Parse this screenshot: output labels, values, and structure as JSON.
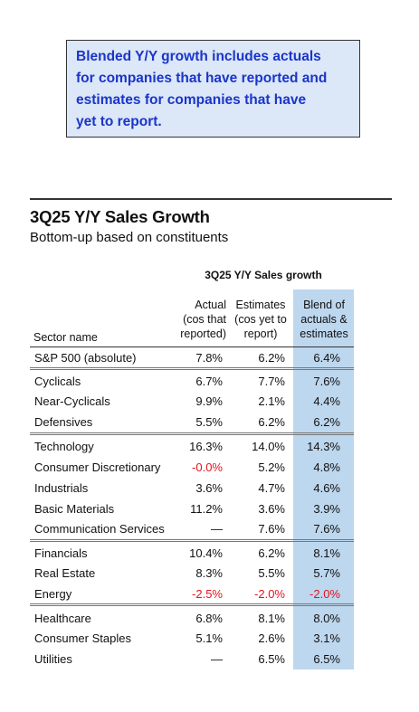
{
  "callout": {
    "lines": [
      "Blended Y/Y growth includes actuals",
      "for companies that have reported and",
      "estimates for companies that have",
      "yet to report."
    ]
  },
  "chart_data": {
    "type": "table",
    "title": "3Q25 Y/Y Sales Growth",
    "subtitle": "Bottom-up based on constituents",
    "group_header": "3Q25 Y/Y Sales growth",
    "columns": {
      "sector": "Sector name",
      "actual": [
        "Actual",
        "(cos that",
        "reported)"
      ],
      "estimates": [
        "Estimates",
        "(cos yet to",
        "report)"
      ],
      "blend": [
        "Blend of",
        "actuals &",
        "estimates"
      ]
    },
    "highlight_color": "#bdd7ee",
    "negative_color": "#e0141e",
    "rows": [
      {
        "sector": "S&P 500 (absolute)",
        "actual": "7.8%",
        "estimates": "6.2%",
        "blend": "6.4%"
      },
      {
        "sector": "Cyclicals",
        "actual": "6.7%",
        "estimates": "7.7%",
        "blend": "7.6%"
      },
      {
        "sector": "Near-Cyclicals",
        "actual": "9.9%",
        "estimates": "2.1%",
        "blend": "4.4%"
      },
      {
        "sector": "Defensives",
        "actual": "5.5%",
        "estimates": "6.2%",
        "blend": "6.2%"
      },
      {
        "sector": "Technology",
        "actual": "16.3%",
        "estimates": "14.0%",
        "blend": "14.3%"
      },
      {
        "sector": "Consumer Discretionary",
        "actual": "-0.0%",
        "estimates": "5.2%",
        "blend": "4.8%"
      },
      {
        "sector": "Industrials",
        "actual": "3.6%",
        "estimates": "4.7%",
        "blend": "4.6%"
      },
      {
        "sector": "Basic Materials",
        "actual": "11.2%",
        "estimates": "3.6%",
        "blend": "3.9%"
      },
      {
        "sector": "Communication Services",
        "actual": "—",
        "estimates": "7.6%",
        "blend": "7.6%"
      },
      {
        "sector": "Financials",
        "actual": "10.4%",
        "estimates": "6.2%",
        "blend": "8.1%"
      },
      {
        "sector": "Real Estate",
        "actual": "8.3%",
        "estimates": "5.5%",
        "blend": "5.7%"
      },
      {
        "sector": "Energy",
        "actual": "-2.5%",
        "estimates": "-2.0%",
        "blend": "-2.0%"
      },
      {
        "sector": "Healthcare",
        "actual": "6.8%",
        "estimates": "8.1%",
        "blend": "8.0%"
      },
      {
        "sector": "Consumer Staples",
        "actual": "5.1%",
        "estimates": "2.6%",
        "blend": "3.1%"
      },
      {
        "sector": "Utilities",
        "actual": "—",
        "estimates": "6.5%",
        "blend": "6.5%"
      }
    ]
  }
}
